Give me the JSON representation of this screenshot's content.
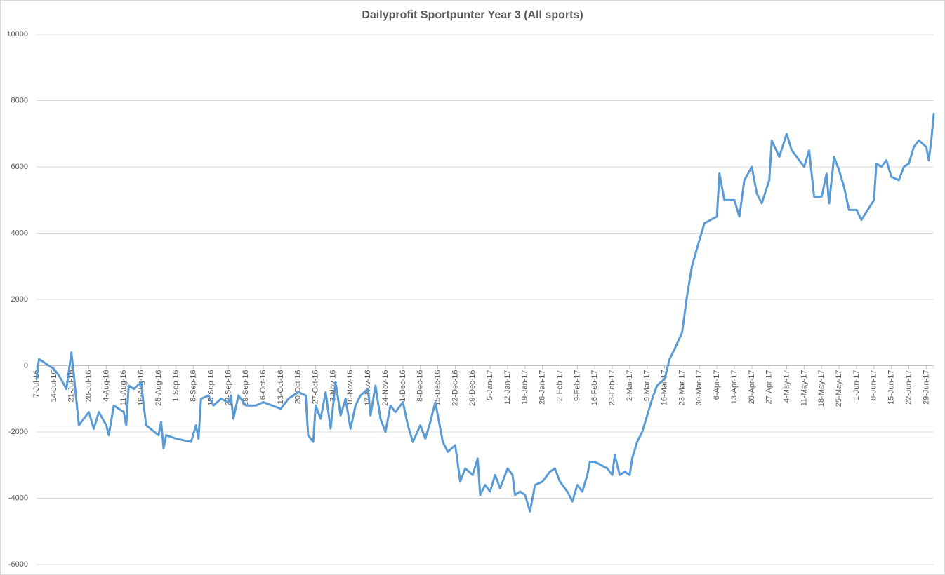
{
  "chart_data": {
    "type": "line",
    "title": "Dailyprofit Sportpunter Year 3 (All sports)",
    "color": "#5b9bd5",
    "grid": true,
    "ylim": [
      -6000,
      10000
    ],
    "yticks": [
      -6000,
      -4000,
      -2000,
      0,
      2000,
      4000,
      6000,
      8000,
      10000
    ],
    "xlim": [
      "7-Jul-16",
      "2-Jul-17"
    ],
    "xticks": [
      "7-Jul-16",
      "14-Jul-16",
      "21-Jul-16",
      "28-Jul-16",
      "4-Aug-16",
      "11-Aug-16",
      "18-Aug-16",
      "25-Aug-16",
      "1-Sep-16",
      "8-Sep-16",
      "15-Sep-16",
      "22-Sep-16",
      "29-Sep-16",
      "6-Oct-16",
      "13-Oct-16",
      "20-Oct-16",
      "27-Oct-16",
      "3-Nov-16",
      "10-Nov-16",
      "17-Nov-16",
      "24-Nov-16",
      "1-Dec-16",
      "8-Dec-16",
      "15-Dec-16",
      "22-Dec-16",
      "29-Dec-16",
      "5-Jan-17",
      "12-Jan-17",
      "19-Jan-17",
      "26-Jan-17",
      "2-Feb-17",
      "9-Feb-17",
      "16-Feb-17",
      "23-Feb-17",
      "2-Mar-17",
      "9-Mar-17",
      "16-Mar-17",
      "23-Mar-17",
      "30-Mar-17",
      "6-Apr-17",
      "13-Apr-17",
      "20-Apr-17",
      "27-Apr-17",
      "4-May-17",
      "11-May-17",
      "18-May-17",
      "25-May-17",
      "1-Jun-17",
      "8-Jun-17",
      "15-Jun-17",
      "22-Jun-17",
      "29-Jun-17"
    ],
    "x": [
      "7-Jul-16",
      "8-Jul-16",
      "10-Jul-16",
      "14-Jul-16",
      "16-Jul-16",
      "19-Jul-16",
      "21-Jul-16",
      "22-Jul-16",
      "24-Jul-16",
      "28-Jul-16",
      "30-Jul-16",
      "1-Aug-16",
      "4-Aug-16",
      "5-Aug-16",
      "7-Aug-16",
      "11-Aug-16",
      "12-Aug-16",
      "13-Aug-16",
      "15-Aug-16",
      "18-Aug-16",
      "19-Aug-16",
      "20-Aug-16",
      "25-Aug-16",
      "26-Aug-16",
      "27-Aug-16",
      "28-Aug-16",
      "1-Sep-16",
      "7-Sep-16",
      "9-Sep-16",
      "10-Sep-16",
      "11-Sep-16",
      "14-Sep-16",
      "16-Sep-16",
      "19-Sep-16",
      "22-Sep-16",
      "23-Sep-16",
      "24-Sep-16",
      "26-Sep-16",
      "29-Sep-16",
      "3-Oct-16",
      "6-Oct-16",
      "13-Oct-16",
      "16-Oct-16",
      "20-Oct-16",
      "23-Oct-16",
      "24-Oct-16",
      "26-Oct-16",
      "27-Oct-16",
      "29-Oct-16",
      "31-Oct-16",
      "2-Nov-16",
      "4-Nov-16",
      "6-Nov-16",
      "8-Nov-16",
      "10-Nov-16",
      "12-Nov-16",
      "14-Nov-16",
      "17-Nov-16",
      "18-Nov-16",
      "20-Nov-16",
      "22-Nov-16",
      "24-Nov-16",
      "26-Nov-16",
      "28-Nov-16",
      "1-Dec-16",
      "3-Dec-16",
      "5-Dec-16",
      "8-Dec-16",
      "10-Dec-16",
      "12-Dec-16",
      "14-Dec-16",
      "15-Dec-16",
      "17-Dec-16",
      "19-Dec-16",
      "22-Dec-16",
      "24-Dec-16",
      "26-Dec-16",
      "29-Dec-16",
      "31-Dec-16",
      "1-Jan-17",
      "3-Jan-17",
      "5-Jan-17",
      "7-Jan-17",
      "9-Jan-17",
      "12-Jan-17",
      "14-Jan-17",
      "15-Jan-17",
      "17-Jan-17",
      "19-Jan-17",
      "21-Jan-17",
      "23-Jan-17",
      "26-Jan-17",
      "29-Jan-17",
      "31-Jan-17",
      "2-Feb-17",
      "5-Feb-17",
      "7-Feb-17",
      "9-Feb-17",
      "11-Feb-17",
      "13-Feb-17",
      "14-Feb-17",
      "16-Feb-17",
      "21-Feb-17",
      "23-Feb-17",
      "24-Feb-17",
      "26-Feb-17",
      "28-Feb-17",
      "2-Mar-17",
      "3-Mar-17",
      "5-Mar-17",
      "7-Mar-17",
      "9-Mar-17",
      "11-Mar-17",
      "13-Mar-17",
      "16-Mar-17",
      "18-Mar-17",
      "20-Mar-17",
      "23-Mar-17",
      "25-Mar-17",
      "27-Mar-17",
      "30-Mar-17",
      "1-Apr-17",
      "6-Apr-17",
      "7-Apr-17",
      "9-Apr-17",
      "13-Apr-17",
      "15-Apr-17",
      "17-Apr-17",
      "20-Apr-17",
      "22-Apr-17",
      "24-Apr-17",
      "27-Apr-17",
      "28-Apr-17",
      "1-May-17",
      "4-May-17",
      "6-May-17",
      "8-May-17",
      "11-May-17",
      "13-May-17",
      "15-May-17",
      "18-May-17",
      "20-May-17",
      "21-May-17",
      "23-May-17",
      "25-May-17",
      "27-May-17",
      "29-May-17",
      "1-Jun-17",
      "3-Jun-17",
      "8-Jun-17",
      "9-Jun-17",
      "11-Jun-17",
      "13-Jun-17",
      "15-Jun-17",
      "18-Jun-17",
      "20-Jun-17",
      "22-Jun-17",
      "24-Jun-17",
      "26-Jun-17",
      "29-Jun-17",
      "30-Jun-17",
      "1-Jul-17",
      "2-Jul-17"
    ],
    "values": [
      -400,
      200,
      100,
      -100,
      -300,
      -700,
      400,
      -300,
      -1800,
      -1400,
      -1900,
      -1400,
      -1800,
      -2100,
      -1200,
      -1400,
      -1800,
      -600,
      -700,
      -500,
      -1200,
      -1800,
      -2100,
      -1700,
      -2500,
      -2100,
      -2200,
      -2300,
      -1800,
      -2200,
      -1000,
      -900,
      -1200,
      -1000,
      -1100,
      -900,
      -1600,
      -900,
      -1200,
      -1200,
      -1100,
      -1300,
      -1000,
      -800,
      -900,
      -2100,
      -2300,
      -1200,
      -1600,
      -800,
      -1900,
      -500,
      -1500,
      -1000,
      -1900,
      -1200,
      -900,
      -700,
      -1500,
      -600,
      -1600,
      -2000,
      -1200,
      -1400,
      -1100,
      -1800,
      -2300,
      -1800,
      -2200,
      -1700,
      -1100,
      -1500,
      -2300,
      -2600,
      -2400,
      -3500,
      -3100,
      -3300,
      -2800,
      -3900,
      -3600,
      -3800,
      -3300,
      -3700,
      -3100,
      -3300,
      -3900,
      -3800,
      -3900,
      -4400,
      -3600,
      -3500,
      -3200,
      -3100,
      -3500,
      -3800,
      -4100,
      -3600,
      -3800,
      -3300,
      -2900,
      -2900,
      -3100,
      -3300,
      -2700,
      -3300,
      -3200,
      -3300,
      -2800,
      -2300,
      -2000,
      -1500,
      -1000,
      -600,
      -400,
      200,
      500,
      1000,
      2100,
      3000,
      3800,
      4300,
      4500,
      5800,
      5000,
      5000,
      4500,
      5600,
      6000,
      5200,
      4900,
      5600,
      6800,
      6300,
      7000,
      6500,
      6300,
      6000,
      6500,
      5100,
      5100,
      5800,
      4900,
      6300,
      5900,
      5400,
      4700,
      4700,
      4400,
      5000,
      6100,
      6000,
      6200,
      5700,
      5600,
      6000,
      6100,
      6600,
      6800,
      6600,
      6200,
      6800,
      7600
    ]
  }
}
